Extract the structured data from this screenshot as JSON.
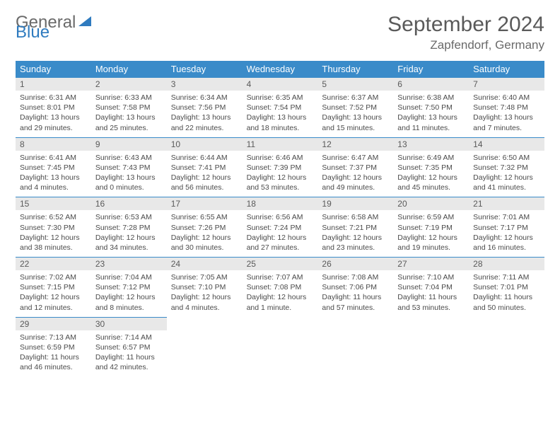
{
  "logo": {
    "general": "General",
    "blue": "Blue"
  },
  "title": "September 2024",
  "location": "Zapfendorf, Germany",
  "colors": {
    "header_bg": "#3a8bc9",
    "header_text": "#ffffff",
    "daynum_bg": "#e8e8e8",
    "border": "#3a8bc9"
  },
  "weekdays": [
    "Sunday",
    "Monday",
    "Tuesday",
    "Wednesday",
    "Thursday",
    "Friday",
    "Saturday"
  ],
  "days": [
    {
      "n": "1",
      "sr": "6:31 AM",
      "ss": "8:01 PM",
      "dl": "13 hours and 29 minutes."
    },
    {
      "n": "2",
      "sr": "6:33 AM",
      "ss": "7:58 PM",
      "dl": "13 hours and 25 minutes."
    },
    {
      "n": "3",
      "sr": "6:34 AM",
      "ss": "7:56 PM",
      "dl": "13 hours and 22 minutes."
    },
    {
      "n": "4",
      "sr": "6:35 AM",
      "ss": "7:54 PM",
      "dl": "13 hours and 18 minutes."
    },
    {
      "n": "5",
      "sr": "6:37 AM",
      "ss": "7:52 PM",
      "dl": "13 hours and 15 minutes."
    },
    {
      "n": "6",
      "sr": "6:38 AM",
      "ss": "7:50 PM",
      "dl": "13 hours and 11 minutes."
    },
    {
      "n": "7",
      "sr": "6:40 AM",
      "ss": "7:48 PM",
      "dl": "13 hours and 7 minutes."
    },
    {
      "n": "8",
      "sr": "6:41 AM",
      "ss": "7:45 PM",
      "dl": "13 hours and 4 minutes."
    },
    {
      "n": "9",
      "sr": "6:43 AM",
      "ss": "7:43 PM",
      "dl": "13 hours and 0 minutes."
    },
    {
      "n": "10",
      "sr": "6:44 AM",
      "ss": "7:41 PM",
      "dl": "12 hours and 56 minutes."
    },
    {
      "n": "11",
      "sr": "6:46 AM",
      "ss": "7:39 PM",
      "dl": "12 hours and 53 minutes."
    },
    {
      "n": "12",
      "sr": "6:47 AM",
      "ss": "7:37 PM",
      "dl": "12 hours and 49 minutes."
    },
    {
      "n": "13",
      "sr": "6:49 AM",
      "ss": "7:35 PM",
      "dl": "12 hours and 45 minutes."
    },
    {
      "n": "14",
      "sr": "6:50 AM",
      "ss": "7:32 PM",
      "dl": "12 hours and 41 minutes."
    },
    {
      "n": "15",
      "sr": "6:52 AM",
      "ss": "7:30 PM",
      "dl": "12 hours and 38 minutes."
    },
    {
      "n": "16",
      "sr": "6:53 AM",
      "ss": "7:28 PM",
      "dl": "12 hours and 34 minutes."
    },
    {
      "n": "17",
      "sr": "6:55 AM",
      "ss": "7:26 PM",
      "dl": "12 hours and 30 minutes."
    },
    {
      "n": "18",
      "sr": "6:56 AM",
      "ss": "7:24 PM",
      "dl": "12 hours and 27 minutes."
    },
    {
      "n": "19",
      "sr": "6:58 AM",
      "ss": "7:21 PM",
      "dl": "12 hours and 23 minutes."
    },
    {
      "n": "20",
      "sr": "6:59 AM",
      "ss": "7:19 PM",
      "dl": "12 hours and 19 minutes."
    },
    {
      "n": "21",
      "sr": "7:01 AM",
      "ss": "7:17 PM",
      "dl": "12 hours and 16 minutes."
    },
    {
      "n": "22",
      "sr": "7:02 AM",
      "ss": "7:15 PM",
      "dl": "12 hours and 12 minutes."
    },
    {
      "n": "23",
      "sr": "7:04 AM",
      "ss": "7:12 PM",
      "dl": "12 hours and 8 minutes."
    },
    {
      "n": "24",
      "sr": "7:05 AM",
      "ss": "7:10 PM",
      "dl": "12 hours and 4 minutes."
    },
    {
      "n": "25",
      "sr": "7:07 AM",
      "ss": "7:08 PM",
      "dl": "12 hours and 1 minute."
    },
    {
      "n": "26",
      "sr": "7:08 AM",
      "ss": "7:06 PM",
      "dl": "11 hours and 57 minutes."
    },
    {
      "n": "27",
      "sr": "7:10 AM",
      "ss": "7:04 PM",
      "dl": "11 hours and 53 minutes."
    },
    {
      "n": "28",
      "sr": "7:11 AM",
      "ss": "7:01 PM",
      "dl": "11 hours and 50 minutes."
    },
    {
      "n": "29",
      "sr": "7:13 AM",
      "ss": "6:59 PM",
      "dl": "11 hours and 46 minutes."
    },
    {
      "n": "30",
      "sr": "7:14 AM",
      "ss": "6:57 PM",
      "dl": "11 hours and 42 minutes."
    }
  ],
  "labels": {
    "sunrise": "Sunrise:",
    "sunset": "Sunset:",
    "daylight": "Daylight:"
  }
}
